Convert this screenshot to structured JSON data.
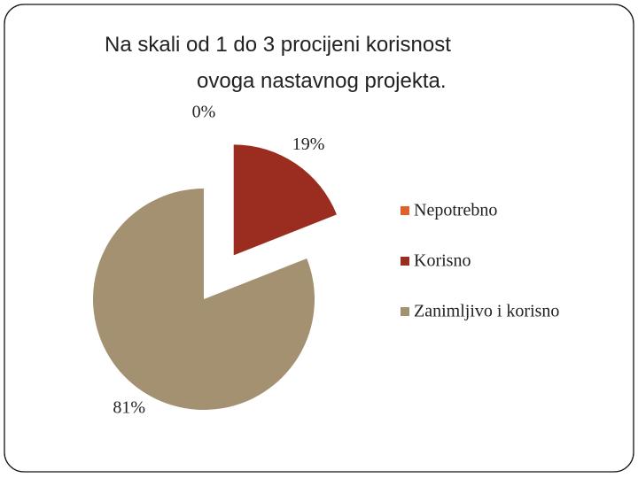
{
  "chart_data": {
    "type": "pie",
    "title": [
      "Na skali od 1 do 3 procijeni korisnost",
      "ovoga nastavnog projekta."
    ],
    "categories": [
      "Nepotrebno",
      "Korisno",
      "Zanimljivo i korisno"
    ],
    "values": [
      0,
      19,
      81
    ],
    "value_labels": [
      "0%",
      "19%",
      "81%"
    ],
    "colors": [
      "#e0622a",
      "#9b2d20",
      "#a39171"
    ],
    "legend": "right"
  }
}
